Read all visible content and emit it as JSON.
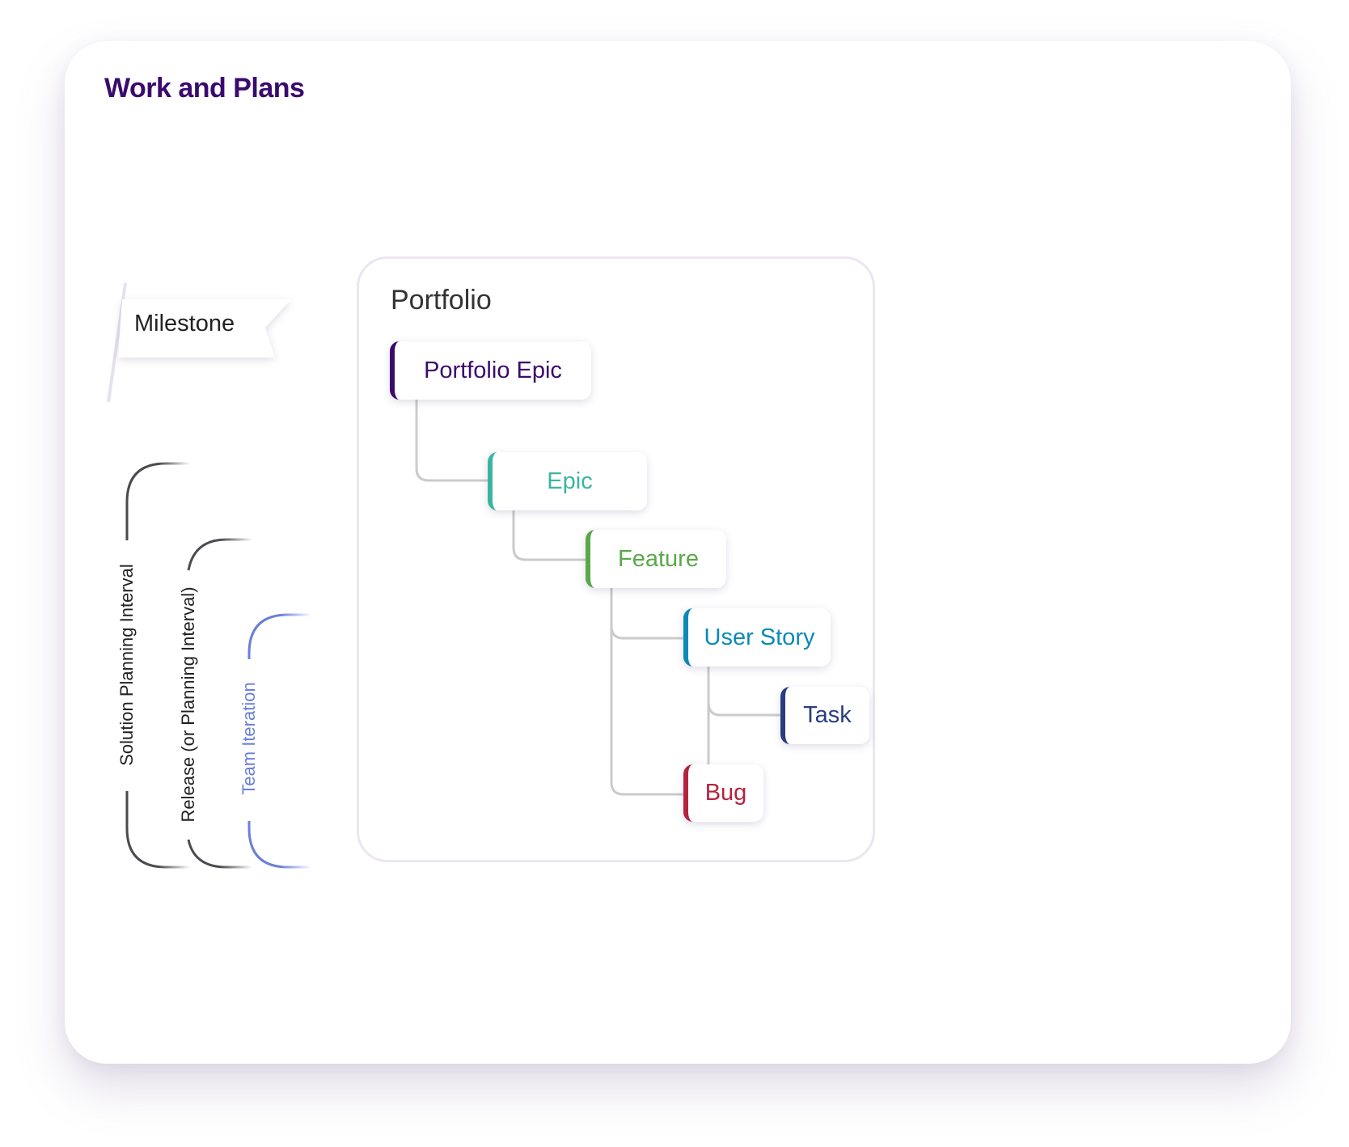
{
  "title": "Work and Plans",
  "milestone": {
    "label": "Milestone"
  },
  "intervals": [
    {
      "label": "Solution Planning Interval",
      "color": "#4a4a4f"
    },
    {
      "label": "Release (or Planning Interval)",
      "color": "#4a4a4f"
    },
    {
      "label": "Team Iteration",
      "color": "#6b7fd8"
    }
  ],
  "portfolio": {
    "label": "Portfolio",
    "nodes": [
      {
        "label": "Portfolio Epic",
        "color": "#3c0a6b"
      },
      {
        "label": "Epic",
        "color": "#3bb5a0"
      },
      {
        "label": "Feature",
        "color": "#5aa84a"
      },
      {
        "label": "User Story",
        "color": "#0a8ab8"
      },
      {
        "label": "Task",
        "color": "#2a3d80"
      },
      {
        "label": "Bug",
        "color": "#b5223e"
      }
    ]
  }
}
